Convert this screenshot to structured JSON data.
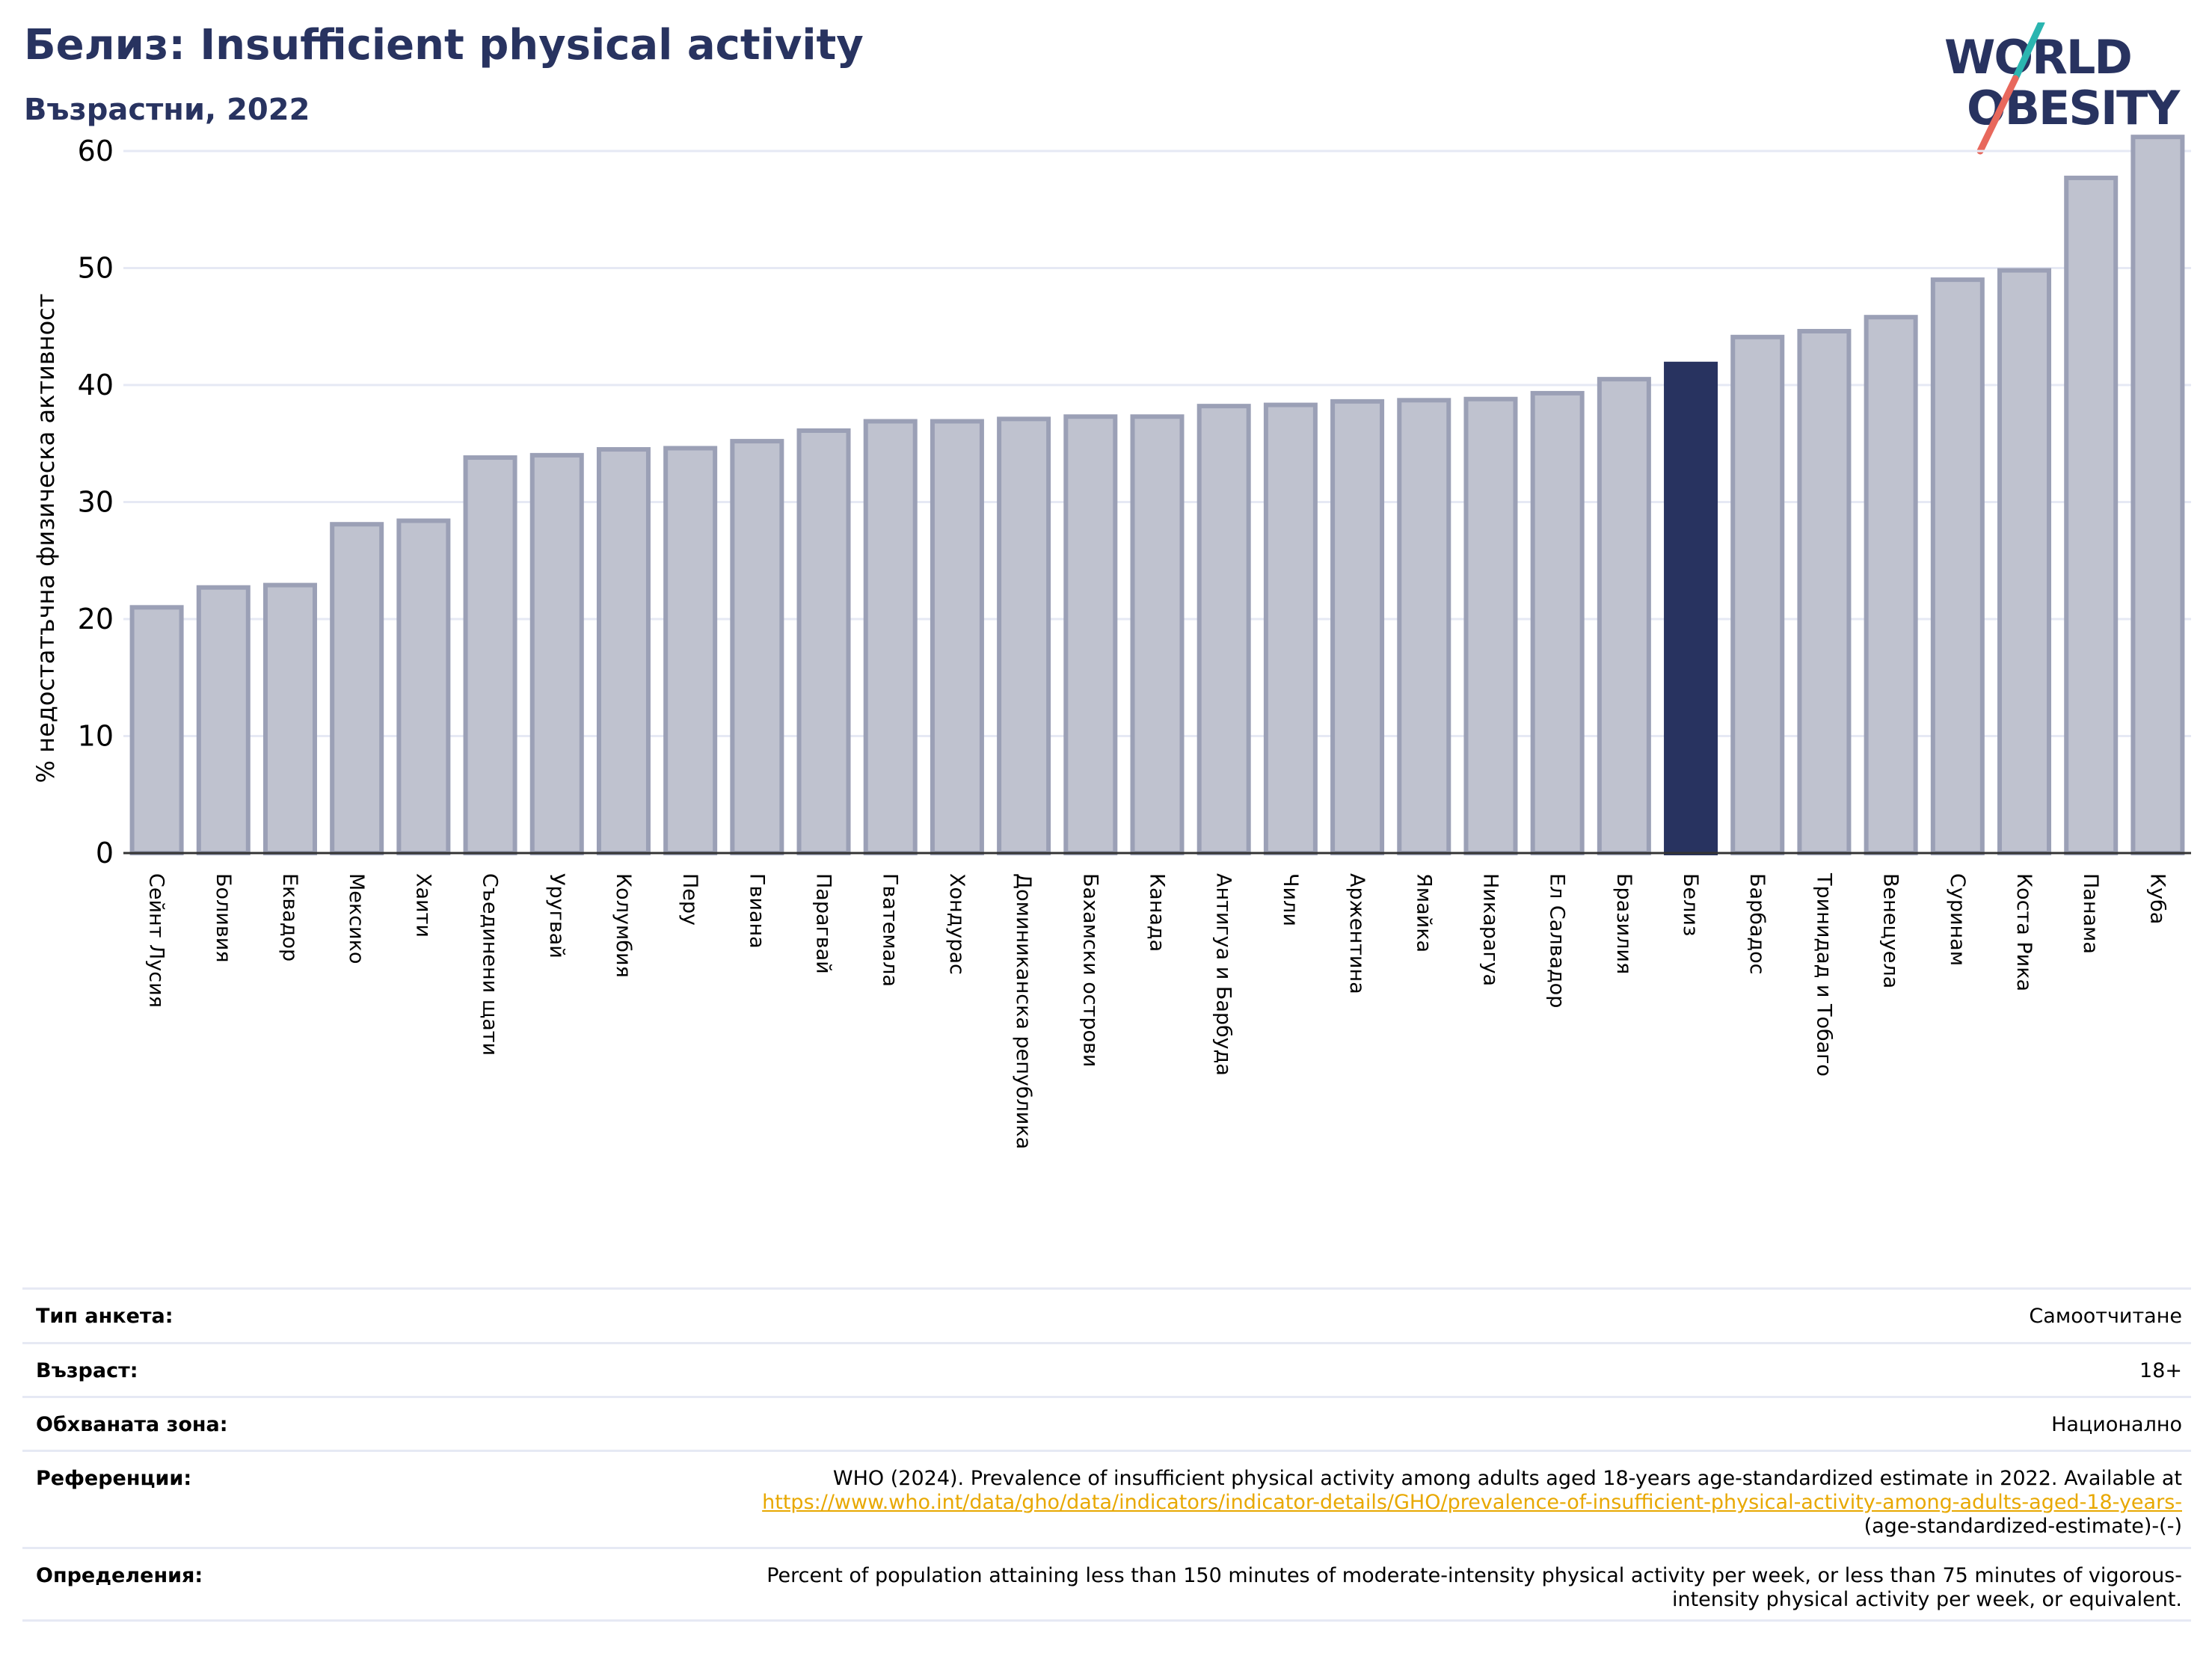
{
  "header": {
    "title": "Белиз: Insufficient physical activity",
    "subtitle": "Възрастни, 2022"
  },
  "logo": {
    "line1": "WORLD",
    "line2": "OBESITY",
    "text_color": "#283360",
    "accent_teal": "#2bb5b0",
    "accent_red": "#e8685c"
  },
  "colors": {
    "bar_fill": "#bfc2cf",
    "bar_stroke": "#9ba0b6",
    "highlight": "#283360",
    "grid": "#e6e9f4"
  },
  "chart_data": {
    "type": "bar",
    "title": "",
    "ylabel": "% недостатъчна физическа активност",
    "xlabel": "",
    "ylim": [
      0,
      63
    ],
    "yticks": [
      0,
      10,
      20,
      30,
      40,
      50,
      60
    ],
    "grid": true,
    "highlight_category": "Белиз",
    "categories": [
      "Сейнт Лусия",
      "Боливия",
      "Еквадор",
      "Мексико",
      "Хаити",
      "Съединени щати",
      "Уругвай",
      "Колумбия",
      "Перу",
      "Гвиана",
      "Парагвай",
      "Гватемала",
      "Хондурас",
      "Доминиканска република",
      "Бахамски острови",
      "Канада",
      "Антигуа и Барбуда",
      "Чили",
      "Аржентина",
      "Ямайка",
      "Никарагуа",
      "Ел Салвадор",
      "Бразилия",
      "Белиз",
      "Барбадос",
      "Тринидад и Тобаго",
      "Венецуела",
      "Суринам",
      "Коста Рика",
      "Панама",
      "Куба"
    ],
    "values": [
      21.0,
      22.7,
      22.9,
      28.1,
      28.4,
      33.8,
      34.0,
      34.5,
      34.6,
      35.2,
      36.1,
      36.9,
      36.9,
      37.1,
      37.3,
      37.3,
      38.2,
      38.3,
      38.6,
      38.7,
      38.8,
      39.3,
      40.5,
      41.8,
      44.1,
      44.6,
      45.8,
      49.0,
      49.8,
      57.7,
      61.2
    ]
  },
  "meta": {
    "survey_label": "Тип анкета:",
    "survey_value": "Самоотчитане",
    "age_label": "Възраст:",
    "age_value": "18+",
    "area_label": "Обхваната зона:",
    "area_value": "Национално",
    "refs_label": "Референции:",
    "refs_text": "WHO (2024). Prevalence of insufficient physical activity among adults aged 18-years age-standardized estimate in 2022. Available at",
    "refs_link": "https://www.who.int/data/gho/data/indicators/indicator-details/GHO/prevalence-of-insufficient-physical-activity-among-adults-aged-18-years-",
    "refs_tail": "(age-standardized-estimate)-(-)",
    "defs_label": "Определения:",
    "defs_line1": "Percent of population attaining less than 150 minutes of moderate-intensity physical activity per week, or less than 75 minutes of vigorous-",
    "defs_line2": "intensity physical activity per week, or equivalent."
  }
}
